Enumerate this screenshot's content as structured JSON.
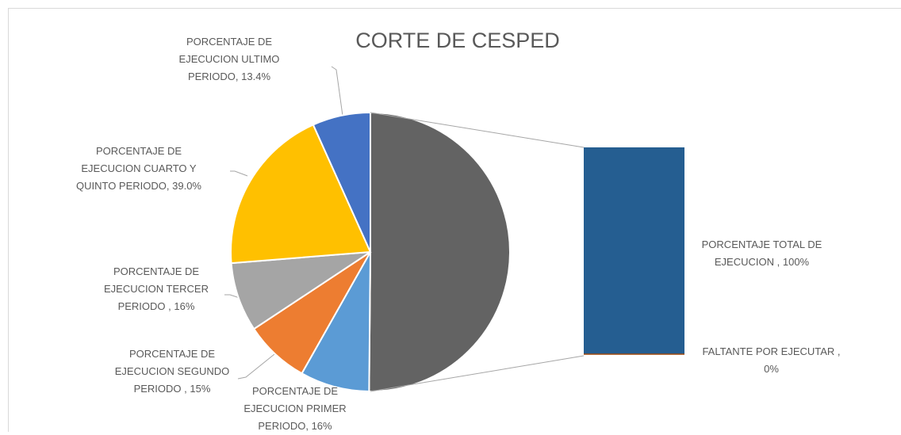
{
  "chart_data": {
    "type": "bar_of_pie",
    "title": "CORTE DE CESPED",
    "categories": [
      "PORCENTAJE DE EJECUCION PRIMER PERIODO,",
      "PORCENTAJE DE EJECUCION SEGUNDO PERIODO ,",
      "PORCENTAJE DE EJECUCION TERCER PERIODO ,",
      "PORCENTAJE DE EJECUCION CUARTO Y QUINTO PERIODO,",
      "PORCENTAJE DE EJECUCION ULTIMO PERIODO,"
    ],
    "values": [
      16,
      15,
      16,
      39.0,
      13.4
    ],
    "value_labels": [
      "16%",
      "15%",
      "16%",
      "39.0%",
      "13.4%"
    ],
    "colors": [
      "#5b9bd5",
      "#ed7d31",
      "#a5a5a5",
      "#ffc000",
      "#4472c4"
    ],
    "other_color": "#636363",
    "bar_categories": [
      "PORCENTAJE TOTAL DE EJECUCION ,",
      "FALTANTE POR EJECUTAR ,"
    ],
    "bar_values": [
      100,
      0
    ],
    "bar_value_labels": [
      "100%",
      "0%"
    ],
    "bar_colors": [
      "#255e91",
      "#9e480e"
    ]
  }
}
